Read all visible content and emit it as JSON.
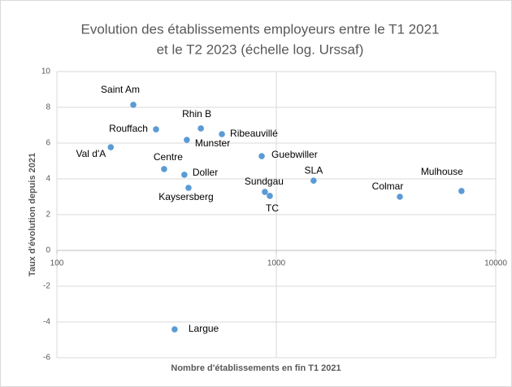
{
  "chart_data": {
    "type": "scatter",
    "title": [
      "Evolution des établissements employeurs entre le T1 2021",
      "et le T2 2023 (échelle log. Urssaf)"
    ],
    "xlabel": "Nombre d'établissements en fin T1 2021",
    "ylabel": "Taux d'évolution depuis  2021",
    "xscale": "log",
    "xlim": [
      100,
      10000
    ],
    "xticks": [
      100,
      1000,
      10000
    ],
    "ylim": [
      -6,
      10
    ],
    "yticks": [
      -6,
      -4,
      -2,
      0,
      2,
      4,
      6,
      8,
      10
    ],
    "grid": true,
    "color": "#5b9bd5",
    "labels": [
      "Saint Am",
      "Rouffach",
      "Val d'A",
      "Rhin B",
      "Munster",
      "Ribeauvillé",
      "Centre",
      "Doller",
      "Kaysersberg",
      "Guebwiller",
      "Sundgau",
      "TC",
      "SLA",
      "Colmar",
      "Mulhouse",
      "Largue"
    ],
    "x": [
      223,
      283,
      176,
      453,
      391,
      565,
      308,
      381,
      398,
      858,
      887,
      934,
      1479,
      3656,
      6980,
      344
    ],
    "y": [
      8.14,
      6.77,
      5.77,
      6.82,
      6.18,
      6.5,
      4.55,
      4.23,
      3.5,
      5.27,
      3.27,
      3.05,
      3.9,
      3.0,
      3.32,
      -4.41
    ]
  }
}
